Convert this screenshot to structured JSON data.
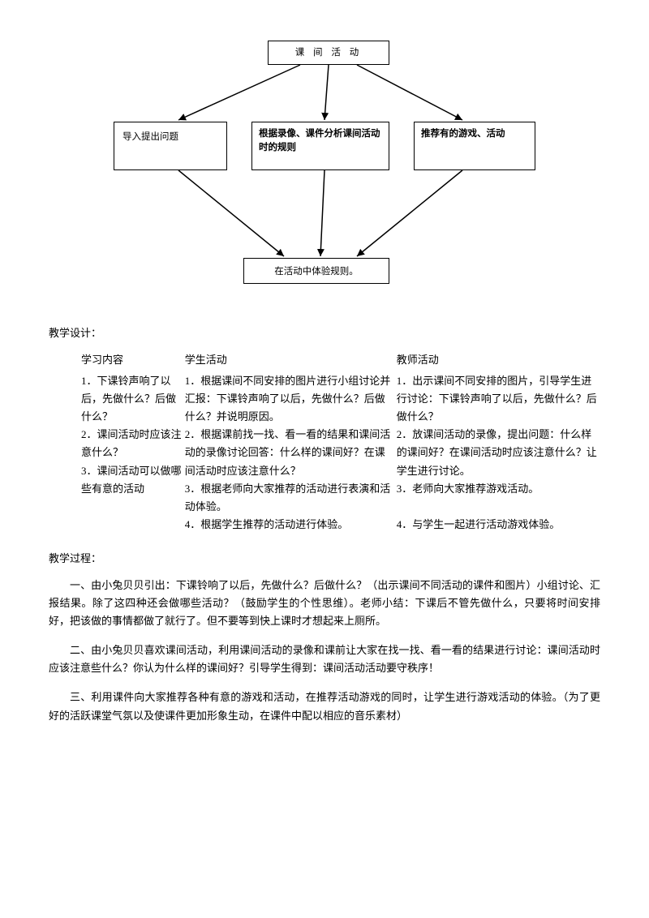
{
  "diagram": {
    "top": "课 间 活 动",
    "left": "导入提出问题",
    "middle": "根据录像、课件分析课间活动时的规则",
    "right": "推荐有的游戏、活动",
    "bottom": "在活动中体验规则。",
    "arrow_color": "#000000",
    "line_width": 1.5
  },
  "labels": {
    "design": "教学设计：",
    "process": "教学过程："
  },
  "table": {
    "headers": [
      "学习内容",
      "学生活动",
      "教师活动"
    ],
    "rows": [
      [
        "1．下课铃声响了以后，先做什么？后做什么？\n2．课间活动时应该注意什么？\n3．课间活动可以做哪些有意的活动",
        "1．根据课间不同安排的图片进行小组讨论并汇报：下课铃声响了以后，先做什么？后做什么？并说明原因。\n2．根据课前找一找、看一看的结果和课间活动的录像讨论回答：什么样的课间好？在课间活动时应该注意什么？\n3．根据老师向大家推荐的活动进行表演和活动体验。\n4．根据学生推荐的活动进行体验。",
        "1．出示课间不同安排的图片，引导学生进行讨论：下课铃声响了以后，先做什么？后做什么？\n2．放课间活动的录像，提出问题：什么样的课间好？在课间活动时应该注意什么？让学生进行讨论。\n3．老师向大家推荐游戏活动。\n\n4．与学生一起进行活动游戏体验。"
      ]
    ]
  },
  "paragraphs": {
    "p1": "一、由小兔贝贝引出：下课铃响了以后，先做什么？后做什么？（出示课间不同活动的课件和图片）小组讨论、汇报结果。除了这四种还会做哪些活动？（鼓励学生的个性思维）。老师小结：下课后不管先做什么，只要将时间安排好，把该做的事情都做了就行了。但不要等到快上课时才想起来上厕所。",
    "p2": "二、由小兔贝贝喜欢课间活动，利用课间活动的录像和课前让大家在找一找、看一看的结果进行讨论：课间活动时应该注意些什么？你认为什么样的课间好？引导学生得到：课间活动活动要守秩序！",
    "p3": "三、利用课件向大家推荐各种有意的游戏和活动，在推荐活动游戏的同时，让学生进行游戏活动的体验。（为了更好的活跃课堂气氛以及使课件更加形象生动，在课件中配以相应的音乐素材）"
  }
}
